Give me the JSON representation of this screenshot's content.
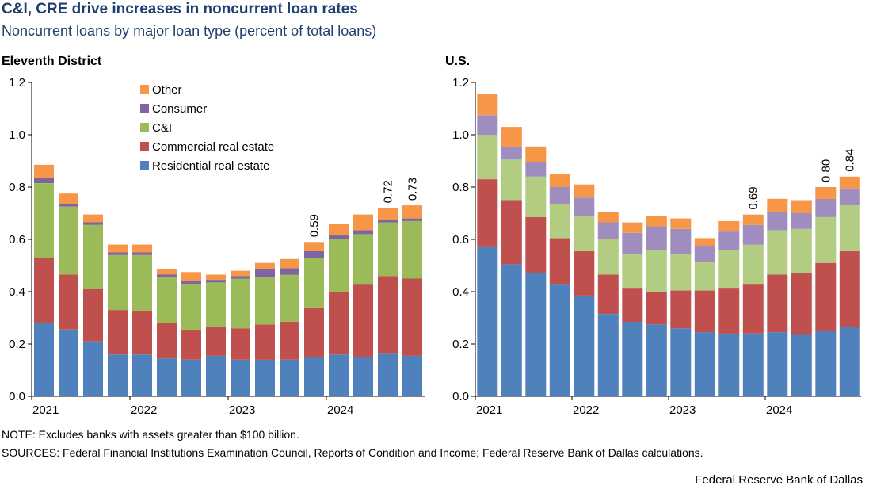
{
  "title": "C&I, CRE drive increases in noncurrent loan rates",
  "subtitle": "Noncurrent loans by major loan type (percent of total loans)",
  "colors": {
    "Residential real estate": "#4f81bd",
    "Commercial real estate": "#c0504d",
    "C&I": "#9bbb59",
    "Consumer": "#8064a2",
    "Other": "#f79646",
    "us_C&I": "#b2cd82",
    "us_Consumer": "#a08dc0"
  },
  "legend": [
    "Other",
    "Consumer",
    "C&I",
    "Commercial real estate",
    "Residential real estate"
  ],
  "chart_data": [
    {
      "type": "bar",
      "stacked": true,
      "panel_title": "Eleventh District",
      "ylim": [
        0,
        1.2
      ],
      "yticks": [
        "0.0",
        "0.2",
        "0.4",
        "0.6",
        "0.8",
        "1.0",
        "1.2"
      ],
      "x_tick_labels": [
        {
          "label": "2021",
          "index": 0
        },
        {
          "label": "2022",
          "index": 4
        },
        {
          "label": "2023",
          "index": 8
        },
        {
          "label": "2024",
          "index": 12
        }
      ],
      "categories": [
        "2021Q1",
        "2021Q2",
        "2021Q3",
        "2021Q4",
        "2022Q1",
        "2022Q2",
        "2022Q3",
        "2022Q4",
        "2023Q1",
        "2023Q2",
        "2023Q3",
        "2023Q4",
        "2024Q1",
        "2024Q2",
        "2024Q3",
        "2024Q4"
      ],
      "series": [
        {
          "name": "Residential real estate",
          "values": [
            0.28,
            0.255,
            0.21,
            0.16,
            0.16,
            0.145,
            0.14,
            0.155,
            0.14,
            0.14,
            0.14,
            0.15,
            0.16,
            0.15,
            0.165,
            0.155
          ]
        },
        {
          "name": "Commercial real estate",
          "values": [
            0.25,
            0.21,
            0.2,
            0.17,
            0.165,
            0.135,
            0.115,
            0.11,
            0.12,
            0.135,
            0.145,
            0.19,
            0.24,
            0.28,
            0.295,
            0.295
          ]
        },
        {
          "name": "C&I",
          "values": [
            0.285,
            0.26,
            0.245,
            0.21,
            0.215,
            0.175,
            0.175,
            0.17,
            0.19,
            0.18,
            0.18,
            0.19,
            0.2,
            0.19,
            0.205,
            0.22
          ]
        },
        {
          "name": "Consumer",
          "values": [
            0.02,
            0.01,
            0.01,
            0.01,
            0.01,
            0.01,
            0.01,
            0.01,
            0.01,
            0.03,
            0.025,
            0.025,
            0.015,
            0.015,
            0.01,
            0.01
          ]
        },
        {
          "name": "Other",
          "values": [
            0.05,
            0.04,
            0.03,
            0.03,
            0.03,
            0.02,
            0.035,
            0.02,
            0.02,
            0.025,
            0.035,
            0.035,
            0.045,
            0.06,
            0.045,
            0.05
          ]
        }
      ],
      "data_labels": [
        {
          "index": 11,
          "text": "0.59"
        },
        {
          "index": 14,
          "text": "0.72"
        },
        {
          "index": 15,
          "text": "0.73"
        }
      ]
    },
    {
      "type": "bar",
      "stacked": true,
      "panel_title": "U.S.",
      "ylim": [
        0,
        1.2
      ],
      "yticks": [
        "0.0",
        "0.2",
        "0.4",
        "0.6",
        "0.8",
        "1.0",
        "1.2"
      ],
      "x_tick_labels": [
        {
          "label": "2021",
          "index": 0
        },
        {
          "label": "2022",
          "index": 4
        },
        {
          "label": "2023",
          "index": 8
        },
        {
          "label": "2024",
          "index": 12
        }
      ],
      "categories": [
        "2021Q1",
        "2021Q2",
        "2021Q3",
        "2021Q4",
        "2022Q1",
        "2022Q2",
        "2022Q3",
        "2022Q4",
        "2023Q1",
        "2023Q2",
        "2023Q3",
        "2023Q4",
        "2024Q1",
        "2024Q2",
        "2024Q3",
        "2024Q4"
      ],
      "series": [
        {
          "name": "Residential real estate",
          "values": [
            0.57,
            0.505,
            0.47,
            0.43,
            0.385,
            0.315,
            0.285,
            0.275,
            0.26,
            0.245,
            0.24,
            0.24,
            0.245,
            0.235,
            0.25,
            0.265
          ]
        },
        {
          "name": "Commercial real estate",
          "values": [
            0.26,
            0.245,
            0.215,
            0.175,
            0.17,
            0.15,
            0.13,
            0.125,
            0.145,
            0.16,
            0.175,
            0.19,
            0.22,
            0.235,
            0.26,
            0.29
          ]
        },
        {
          "name": "C&I",
          "values": [
            0.17,
            0.155,
            0.155,
            0.13,
            0.135,
            0.135,
            0.13,
            0.16,
            0.14,
            0.11,
            0.145,
            0.15,
            0.17,
            0.17,
            0.175,
            0.175
          ]
        },
        {
          "name": "Consumer",
          "values": [
            0.075,
            0.05,
            0.055,
            0.065,
            0.07,
            0.065,
            0.08,
            0.09,
            0.095,
            0.06,
            0.07,
            0.075,
            0.07,
            0.06,
            0.07,
            0.065
          ]
        },
        {
          "name": "Other",
          "values": [
            0.08,
            0.075,
            0.06,
            0.05,
            0.05,
            0.04,
            0.04,
            0.04,
            0.04,
            0.03,
            0.04,
            0.04,
            0.05,
            0.05,
            0.045,
            0.045
          ]
        }
      ],
      "data_labels": [
        {
          "index": 11,
          "text": "0.69"
        },
        {
          "index": 14,
          "text": "0.80"
        },
        {
          "index": 15,
          "text": "0.84"
        }
      ]
    }
  ],
  "note": "NOTE: Excludes banks with assets greater than $100 billion.",
  "sources": "SOURCES: Federal Financial Institutions  Examination Council, Reports of Condition and Income; Federal Reserve Bank of Dallas calculations.",
  "credit": "Federal Reserve Bank of Dallas"
}
